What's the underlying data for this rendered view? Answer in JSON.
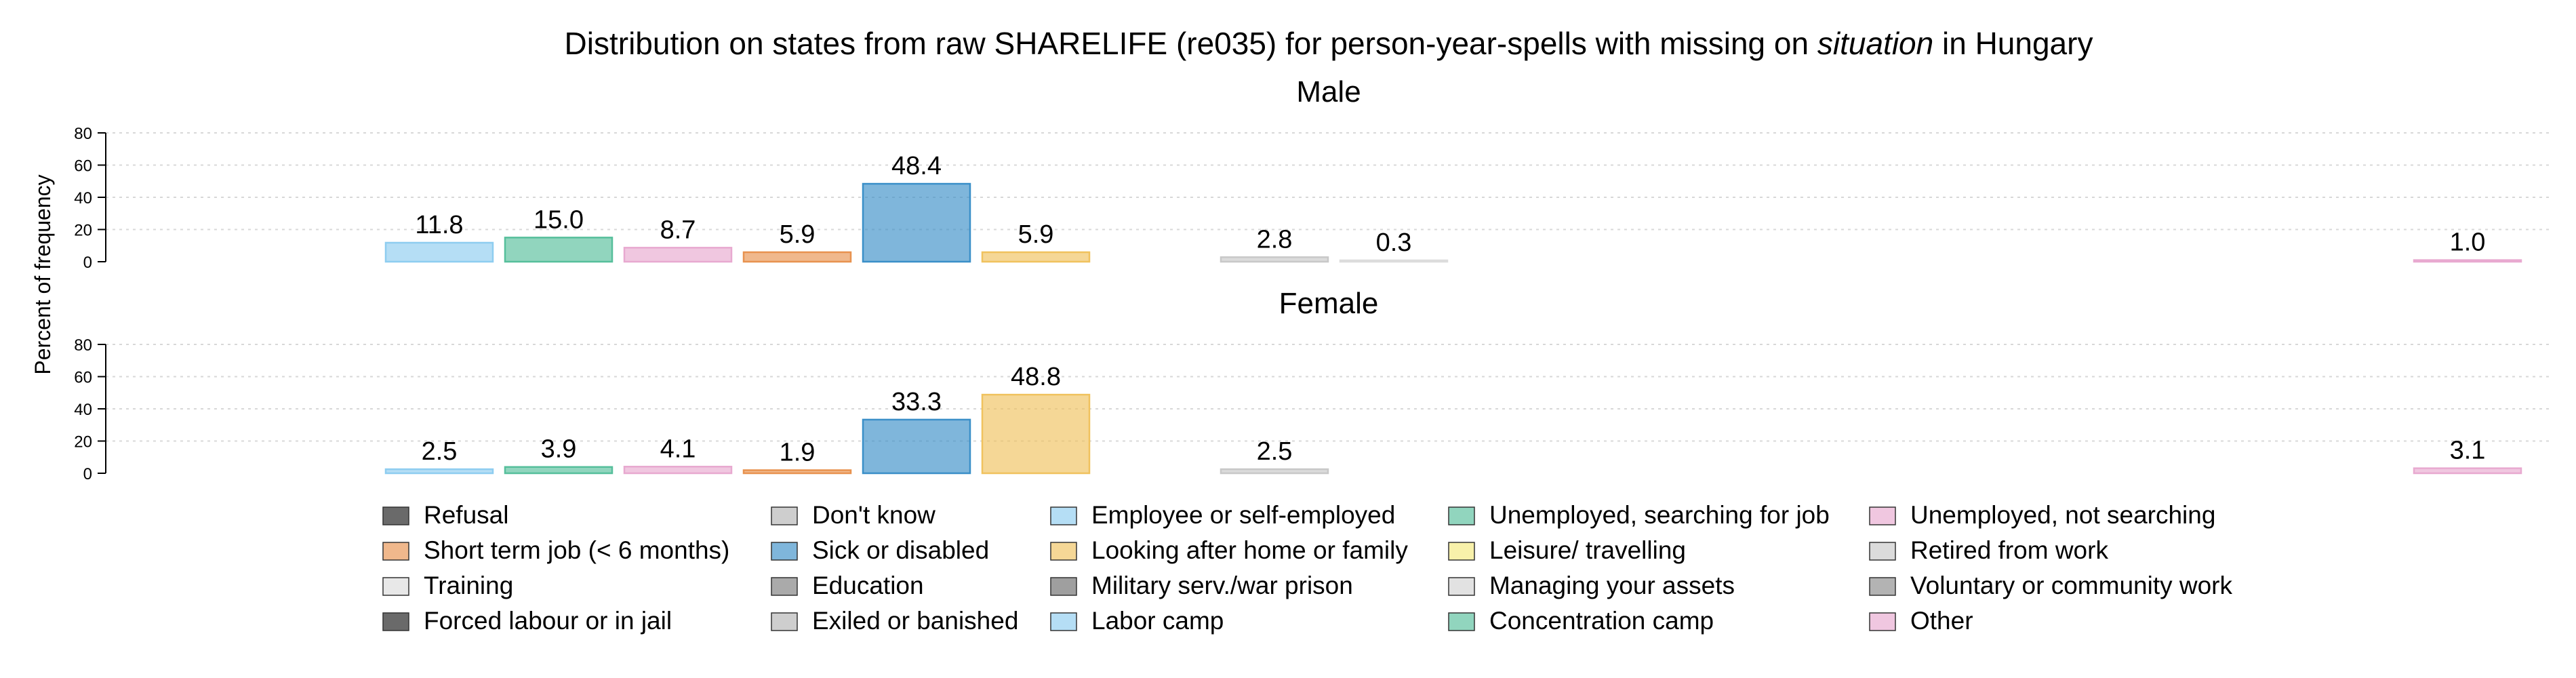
{
  "chart_data": {
    "type": "bar",
    "title_pre": "Distribution on states from raw SHARELIFE (re035) for person-year-spells with missing on ",
    "title_em": "situation",
    "title_post": " in Hungary",
    "ylabel": "Percent of frequency",
    "ylim": [
      0,
      80
    ],
    "yticks": [
      0,
      20,
      40,
      60,
      80
    ],
    "grid": true,
    "legend_position": "bottom",
    "categories": [
      "Refusal",
      "Don't know",
      "Employee or self-employed",
      "Unemployed, searching for job",
      "Unemployed, not searching",
      "Short term job (< 6 months)",
      "Sick or disabled",
      "Looking after home or family",
      "Leisure/ travelling",
      "Retired from work",
      "Training",
      "Education",
      "Military serv./war prison",
      "Managing your assets",
      "Voluntary or community work",
      "Forced labour or in jail",
      "Exiled or banished",
      "Labor camp",
      "Concentration camp",
      "Other"
    ],
    "colors": [
      "#1a1a1a",
      "#b3b3b3",
      "#8ecdf0",
      "#56bf9b",
      "#e8a9d0",
      "#e8924f",
      "#3a8fc8",
      "#f0c25e",
      "#f5ea7d",
      "#c8c8c8",
      "#dcdcdc",
      "#7d7d7d",
      "#6b6b6b",
      "#d2d2d2",
      "#8a8a8a",
      "#1a1a1a",
      "#b3b3b3",
      "#8ecdf0",
      "#56bf9b",
      "#e8a9d0"
    ],
    "x_slots": [
      0,
      1,
      2,
      3,
      4,
      5,
      6,
      7,
      8,
      9,
      10,
      11,
      12,
      13,
      14,
      15,
      16,
      17,
      18,
      19
    ],
    "series": [
      {
        "name": "Male",
        "bars": [
          {
            "category": "Employee or self-employed",
            "slot": 2,
            "value": 11.8,
            "label": "11.8"
          },
          {
            "category": "Unemployed, searching for job",
            "slot": 3,
            "value": 15.0,
            "label": "15.0"
          },
          {
            "category": "Unemployed, not searching",
            "slot": 4,
            "value": 8.7,
            "label": "8.7"
          },
          {
            "category": "Short term job (< 6 months)",
            "slot": 5,
            "value": 5.9,
            "label": "5.9"
          },
          {
            "category": "Sick or disabled",
            "slot": 6,
            "value": 48.4,
            "label": "48.4"
          },
          {
            "category": "Looking after home or family",
            "slot": 7,
            "value": 5.9,
            "label": "5.9"
          },
          {
            "category": "Retired from work",
            "slot": 9,
            "value": 2.8,
            "label": "2.8"
          },
          {
            "category": "Training",
            "slot": 10,
            "value": 0.3,
            "label": "0.3"
          },
          {
            "category": "Other",
            "slot": 19,
            "value": 1.0,
            "label": "1.0"
          }
        ]
      },
      {
        "name": "Female",
        "bars": [
          {
            "category": "Employee or self-employed",
            "slot": 2,
            "value": 2.5,
            "label": "2.5"
          },
          {
            "category": "Unemployed, searching for job",
            "slot": 3,
            "value": 3.9,
            "label": "3.9"
          },
          {
            "category": "Unemployed, not searching",
            "slot": 4,
            "value": 4.1,
            "label": "4.1"
          },
          {
            "category": "Short term job (< 6 months)",
            "slot": 5,
            "value": 1.9,
            "label": "1.9"
          },
          {
            "category": "Sick or disabled",
            "slot": 6,
            "value": 33.3,
            "label": "33.3"
          },
          {
            "category": "Looking after home or family",
            "slot": 7,
            "value": 48.8,
            "label": "48.8"
          },
          {
            "category": "Retired from work",
            "slot": 9,
            "value": 2.5,
            "label": "2.5"
          },
          {
            "category": "Other",
            "slot": 19,
            "value": 3.1,
            "label": "3.1"
          }
        ]
      }
    ],
    "legend": [
      [
        "Refusal",
        "Don't know",
        "Employee or self-employed",
        "Unemployed, searching for job",
        "Unemployed, not searching"
      ],
      [
        "Short term job (< 6 months)",
        "Sick or disabled",
        "Looking after home or family",
        "Leisure/ travelling",
        "Retired from work"
      ],
      [
        "Training",
        "Education",
        "Military serv./war prison",
        "Managing your assets",
        "Voluntary or community work"
      ],
      [
        "Forced labour or in jail",
        "Exiled or banished",
        "Labor camp",
        "Concentration camp",
        "Other"
      ]
    ]
  }
}
